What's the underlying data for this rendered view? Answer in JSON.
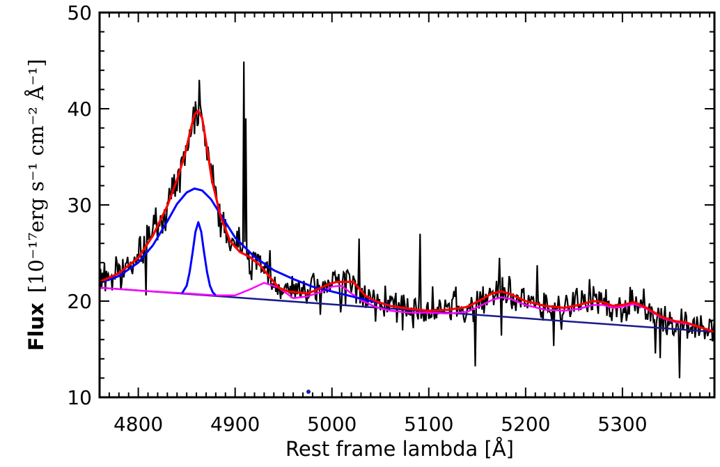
{
  "chart_data": {
    "type": "line",
    "xlabel": "Rest frame lambda [Å]",
    "ylabel_prefix": "Flux",
    "ylabel_units": "[10⁻¹⁷erg s⁻¹ cm⁻² Å⁻¹]",
    "xlim": [
      4760,
      5395
    ],
    "ylim": [
      10,
      50
    ],
    "x_ticks": [
      4800,
      4900,
      5000,
      5100,
      5200,
      5300
    ],
    "y_ticks": [
      10,
      20,
      30,
      40,
      50
    ],
    "x_minor_step": 10,
    "y_minor_step": 2,
    "grid": false,
    "colors": {
      "observed": "#000000",
      "total_model": "#ff0000",
      "broad_components": "#0000ff",
      "feii_components": "#ff00ff",
      "continuum": "#1a1a8c"
    },
    "series": [
      {
        "key": "continuum",
        "x": [
          4760,
          5395
        ],
        "y": [
          21.4,
          16.8
        ]
      },
      {
        "key": "feii_total",
        "x": [
          4760,
          4800,
          4850,
          4880,
          4900,
          4915,
          4930,
          4945,
          4960,
          4975,
          4990,
          5000,
          5010,
          5020,
          5030,
          5045,
          5060,
          5080,
          5100,
          5120,
          5140,
          5155,
          5165,
          5175,
          5185,
          5200,
          5220,
          5240,
          5255,
          5270,
          5280,
          5290,
          5300,
          5312,
          5325,
          5340,
          5355,
          5365,
          5380,
          5395
        ],
        "y": [
          21.4,
          21.1,
          20.8,
          20.6,
          20.6,
          21.2,
          21.9,
          21.4,
          20.3,
          20.5,
          21.0,
          21.5,
          21.6,
          20.8,
          20.1,
          19.4,
          19.0,
          18.8,
          18.8,
          18.7,
          18.9,
          19.6,
          20.1,
          20.4,
          20.2,
          19.6,
          19.1,
          19.0,
          19.2,
          19.6,
          19.6,
          19.3,
          19.4,
          19.7,
          19.2,
          18.3,
          17.8,
          17.7,
          17.3,
          16.8
        ]
      },
      {
        "key": "hbeta_broad",
        "x": [
          4760,
          4780,
          4800,
          4815,
          4830,
          4840,
          4850,
          4858,
          4866,
          4875,
          4885,
          4900,
          4920,
          4940,
          4960,
          4980,
          5000,
          5020,
          5040,
          5060
        ],
        "y": [
          21.9,
          22.6,
          24.0,
          25.8,
          28.3,
          30.1,
          31.3,
          31.7,
          31.5,
          30.6,
          29.0,
          26.6,
          24.6,
          23.2,
          22.3,
          21.5,
          21.0,
          20.5,
          20.0,
          19.6
        ]
      },
      {
        "key": "hbeta_narrow",
        "x": [
          4845,
          4850,
          4853,
          4856,
          4859,
          4862,
          4865,
          4868,
          4871,
          4874,
          4877,
          4880
        ],
        "y": [
          20.8,
          21.6,
          23.0,
          25.0,
          27.2,
          28.2,
          27.2,
          25.0,
          23.0,
          21.6,
          20.9,
          20.6
        ]
      },
      {
        "key": "total_model",
        "x": [
          4760,
          4780,
          4800,
          4815,
          4830,
          4840,
          4848,
          4854,
          4858,
          4862,
          4866,
          4870,
          4876,
          4885,
          4895,
          4905,
          4915,
          4925,
          4935,
          4945,
          4955,
          4965,
          4975,
          4985,
          4995,
          5005,
          5015,
          5022,
          5028,
          5035,
          5045,
          5060,
          5080,
          5100,
          5120,
          5140,
          5155,
          5165,
          5175,
          5185,
          5200,
          5220,
          5240,
          5255,
          5270,
          5280,
          5290,
          5300,
          5312,
          5325,
          5340,
          5355,
          5365,
          5380,
          5395
        ],
        "y": [
          22.0,
          22.9,
          24.5,
          26.8,
          29.9,
          32.6,
          35.2,
          37.8,
          39.4,
          39.8,
          39.0,
          36.5,
          32.6,
          28.8,
          26.2,
          25.1,
          24.6,
          23.8,
          22.6,
          21.4,
          21.0,
          20.9,
          20.8,
          21.2,
          21.7,
          22.0,
          22.0,
          22.0,
          21.3,
          20.5,
          20.0,
          19.5,
          19.2,
          19.0,
          19.1,
          19.4,
          20.2,
          20.8,
          21.0,
          20.7,
          20.0,
          19.5,
          19.3,
          19.6,
          20.0,
          19.9,
          19.5,
          19.6,
          19.9,
          19.3,
          18.4,
          17.9,
          17.8,
          17.3,
          16.8
        ]
      }
    ],
    "observed_noise": {
      "seed": 7,
      "sigma": 0.9,
      "step": 1.0
    },
    "observed_spikes": [
      {
        "x": 4863,
        "y": 43.0
      },
      {
        "x": 4909,
        "y": 44.9
      },
      {
        "x": 4911,
        "y": 39.0
      },
      {
        "x": 5028,
        "y": 26.5
      },
      {
        "x": 5173,
        "y": 24.5
      },
      {
        "x": 5091,
        "y": 27.0
      }
    ]
  }
}
